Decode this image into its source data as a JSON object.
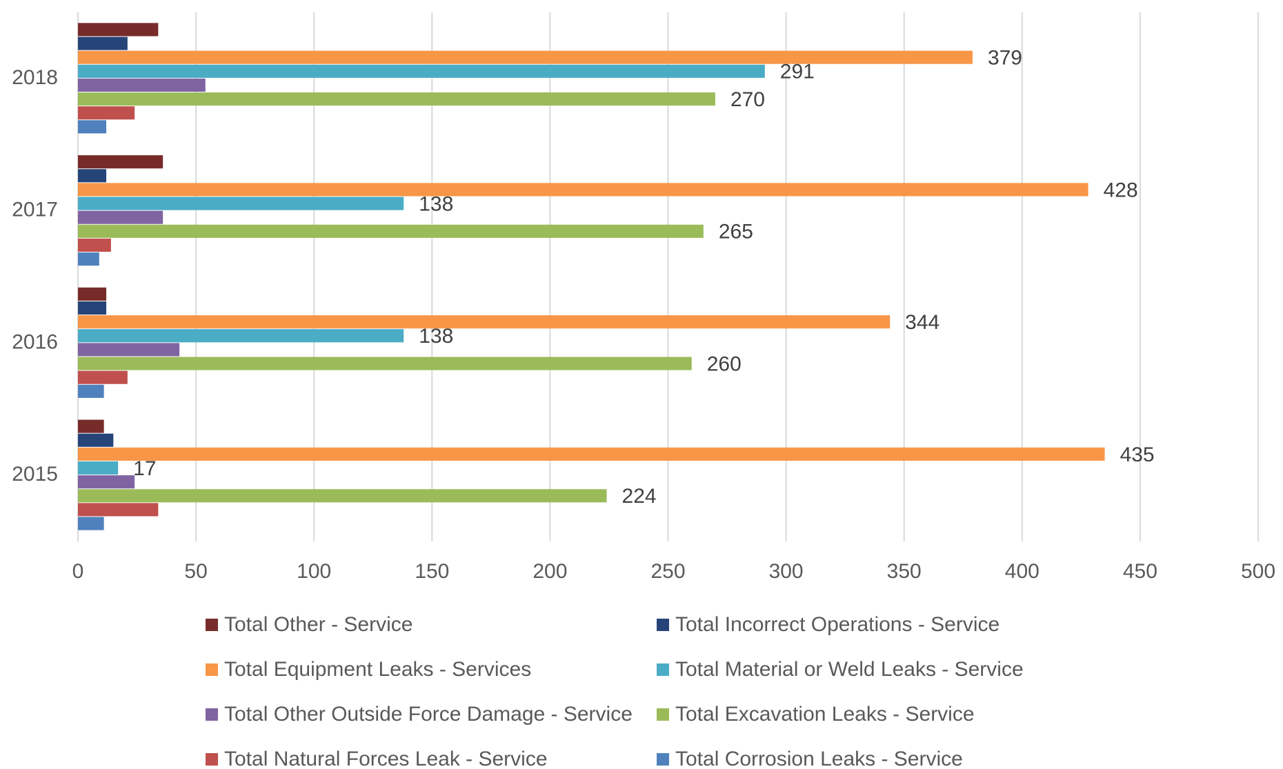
{
  "chart_data": {
    "type": "bar",
    "orientation": "horizontal",
    "categories": [
      "2015",
      "2016",
      "2017",
      "2018"
    ],
    "series": [
      {
        "name": "Total Other - Service",
        "color": "#772c2a",
        "values": [
          11,
          12,
          36,
          34
        ]
      },
      {
        "name": "Total Incorrect Operations - Service",
        "color": "#264478",
        "values": [
          15,
          12,
          12,
          21
        ]
      },
      {
        "name": "Total Equipment Leaks - Services",
        "color": "#f79646",
        "values": [
          435,
          344,
          428,
          379
        ],
        "data_labels": true
      },
      {
        "name": "Total Material or Weld Leaks - Service",
        "color": "#4bacc6",
        "values": [
          17,
          138,
          138,
          291
        ],
        "data_labels": true
      },
      {
        "name": "Total Other Outside Force Damage - Service",
        "color": "#8064a2",
        "values": [
          24,
          43,
          36,
          54
        ]
      },
      {
        "name": "Total Excavation Leaks - Service",
        "color": "#9bbb59",
        "values": [
          224,
          260,
          265,
          270
        ],
        "data_labels": true
      },
      {
        "name": "Total Natural Forces Leak - Service",
        "color": "#c0504d",
        "values": [
          34,
          21,
          14,
          24
        ]
      },
      {
        "name": "Total Corrosion Leaks - Service",
        "color": "#4f81bd",
        "values": [
          11,
          11,
          9,
          12
        ]
      }
    ],
    "xlim": [
      0,
      500
    ],
    "xticks": [
      0,
      50,
      100,
      150,
      200,
      250,
      300,
      350,
      400,
      450,
      500
    ],
    "grid": true,
    "legend": "bottom"
  }
}
